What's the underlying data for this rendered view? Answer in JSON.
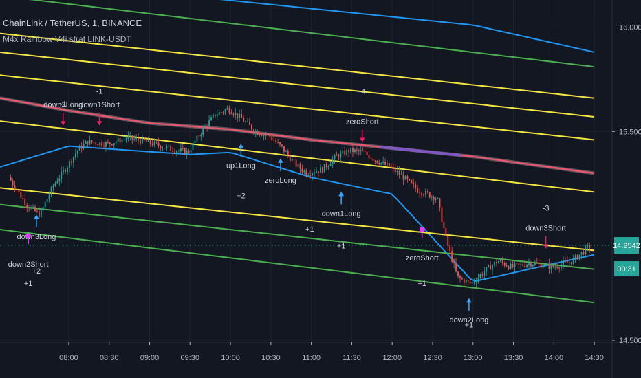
{
  "header": {
    "symbol_title": "ChainLink / TetherUS, 1, BINANCE",
    "indicator_title": "M4x Rainbow V4i strat LINK-USDT"
  },
  "colors": {
    "background": "#131722",
    "grid": "#1e2230",
    "axis_text": "#b2b5be",
    "candle_up": "#26a69a",
    "candle_down": "#ef5350",
    "band_blue": "#2196f3",
    "band_yellow": "#f5e642",
    "band_green": "#4caf50",
    "mid_red": "#e85a6b",
    "mid_purple": "#7e57c2",
    "price_tag": "#26a69a",
    "signal_short": "#e91e63",
    "signal_long": "#42a5f5",
    "signal_magenta": "#e040fb"
  },
  "chart_data": {
    "type": "candlestick",
    "title": "ChainLink / TetherUS, 1, BINANCE",
    "indicator": "M4x Rainbow V4i strat LINK-USDT",
    "ylim": [
      14.49,
      16.13
    ],
    "y_ticks": [
      "16.0000",
      "15.5000",
      "14.5000"
    ],
    "x_ticks": [
      "08:00",
      "08:30",
      "09:00",
      "09:30",
      "10:00",
      "10:30",
      "11:00",
      "11:30",
      "12:00",
      "12:30",
      "13:00",
      "13:30",
      "14:00",
      "14:30"
    ],
    "last_price": "14.9542",
    "countdown": "00:31",
    "grid": true,
    "price_path": [
      [
        "07:17",
        15.28
      ],
      [
        "07:30",
        15.15
      ],
      [
        "07:40",
        15.1
      ],
      [
        "07:50",
        15.24
      ],
      [
        "08:00",
        15.33
      ],
      [
        "08:08",
        15.41
      ],
      [
        "08:15",
        15.45
      ],
      [
        "08:30",
        15.44
      ],
      [
        "08:45",
        15.47
      ],
      [
        "09:00",
        15.45
      ],
      [
        "09:15",
        15.42
      ],
      [
        "09:30",
        15.4
      ],
      [
        "09:40",
        15.5
      ],
      [
        "09:50",
        15.58
      ],
      [
        "10:00",
        15.61
      ],
      [
        "10:10",
        15.56
      ],
      [
        "10:20",
        15.5
      ],
      [
        "10:30",
        15.48
      ],
      [
        "10:40",
        15.42
      ],
      [
        "10:50",
        15.34
      ],
      [
        "10:58",
        15.3
      ],
      [
        "11:10",
        15.32
      ],
      [
        "11:20",
        15.38
      ],
      [
        "11:30",
        15.41
      ],
      [
        "11:40",
        15.4
      ],
      [
        "11:50",
        15.36
      ],
      [
        "12:00",
        15.33
      ],
      [
        "12:10",
        15.28
      ],
      [
        "12:20",
        15.22
      ],
      [
        "12:35",
        15.18
      ],
      [
        "12:42",
        14.97
      ],
      [
        "12:50",
        14.8
      ],
      [
        "13:00",
        14.77
      ],
      [
        "13:10",
        14.83
      ],
      [
        "13:20",
        14.88
      ],
      [
        "13:30",
        14.85
      ],
      [
        "13:45",
        14.87
      ],
      [
        "14:00",
        14.85
      ],
      [
        "14:15",
        14.88
      ],
      [
        "14:28",
        14.95
      ]
    ],
    "bands": [
      {
        "color": "blue",
        "values": [
          [
            7.15,
            16.24
          ],
          [
            13.0,
            16.01
          ],
          [
            14.5,
            15.88
          ]
        ]
      },
      {
        "color": "green",
        "values": [
          [
            7.15,
            16.15
          ],
          [
            14.5,
            15.81
          ]
        ]
      },
      {
        "color": "yellow",
        "values": [
          [
            7.15,
            15.97
          ],
          [
            14.5,
            15.66
          ]
        ]
      },
      {
        "color": "yellow",
        "values": [
          [
            7.15,
            15.88
          ],
          [
            14.5,
            15.57
          ]
        ]
      },
      {
        "color": "yellow",
        "values": [
          [
            7.15,
            15.77
          ],
          [
            14.5,
            15.46
          ]
        ]
      },
      {
        "color": "midline",
        "values": [
          [
            7.15,
            15.66
          ],
          [
            8.0,
            15.6
          ],
          [
            9.0,
            15.54
          ],
          [
            10.0,
            15.51
          ],
          [
            11.0,
            15.46
          ],
          [
            12.0,
            15.42
          ],
          [
            13.0,
            15.38
          ],
          [
            14.5,
            15.3
          ]
        ]
      },
      {
        "color": "yellow",
        "values": [
          [
            7.15,
            15.55
          ],
          [
            14.5,
            15.21
          ]
        ]
      },
      {
        "color": "blue",
        "values": [
          [
            7.15,
            15.33
          ],
          [
            8.0,
            15.43
          ],
          [
            9.5,
            15.39
          ],
          [
            10.0,
            15.4
          ],
          [
            11.0,
            15.28
          ],
          [
            12.0,
            15.2
          ],
          [
            13.0,
            14.78
          ],
          [
            14.5,
            14.91
          ]
        ]
      },
      {
        "color": "yellow",
        "values": [
          [
            7.15,
            15.23
          ],
          [
            14.5,
            14.93
          ]
        ]
      },
      {
        "color": "green",
        "values": [
          [
            7.15,
            15.15
          ],
          [
            14.5,
            14.84
          ]
        ]
      },
      {
        "color": "green",
        "values": [
          [
            7.15,
            15.03
          ],
          [
            14.5,
            14.68
          ]
        ]
      }
    ],
    "signals": [
      {
        "label": "down1Short",
        "side": "short",
        "time": 8.38,
        "price": 15.53
      },
      {
        "label": "down3Long",
        "side": "short",
        "time": 7.93,
        "price": 15.53
      },
      {
        "label": "zeroShort",
        "side": "short",
        "time": 11.63,
        "price": 15.45
      },
      {
        "label": "down3Short",
        "side": "short",
        "time": 13.9,
        "price": 14.94
      },
      {
        "label": "up1Long",
        "side": "long",
        "time": 10.13,
        "price": 15.44
      },
      {
        "label": "zeroLong",
        "side": "long",
        "time": 10.62,
        "price": 15.37
      },
      {
        "label": "down1Long",
        "side": "long",
        "time": 11.37,
        "price": 15.21
      },
      {
        "label": "down2Long",
        "side": "long",
        "time": 12.95,
        "price": 14.7
      },
      {
        "label": "down3Long",
        "side": "long",
        "time": 7.6,
        "price": 15.1
      },
      {
        "label": "zeroShort",
        "side": "magenta",
        "time": 12.37,
        "price": 15.03
      },
      {
        "label": "down2Short",
        "side": "magenta",
        "time": 7.5,
        "price": 15.0
      }
    ],
    "annotations": [
      "-1",
      "-1",
      "+2",
      "+1",
      "+1",
      "+1",
      "-4",
      "-3",
      "+2",
      "+1",
      "+1"
    ]
  }
}
